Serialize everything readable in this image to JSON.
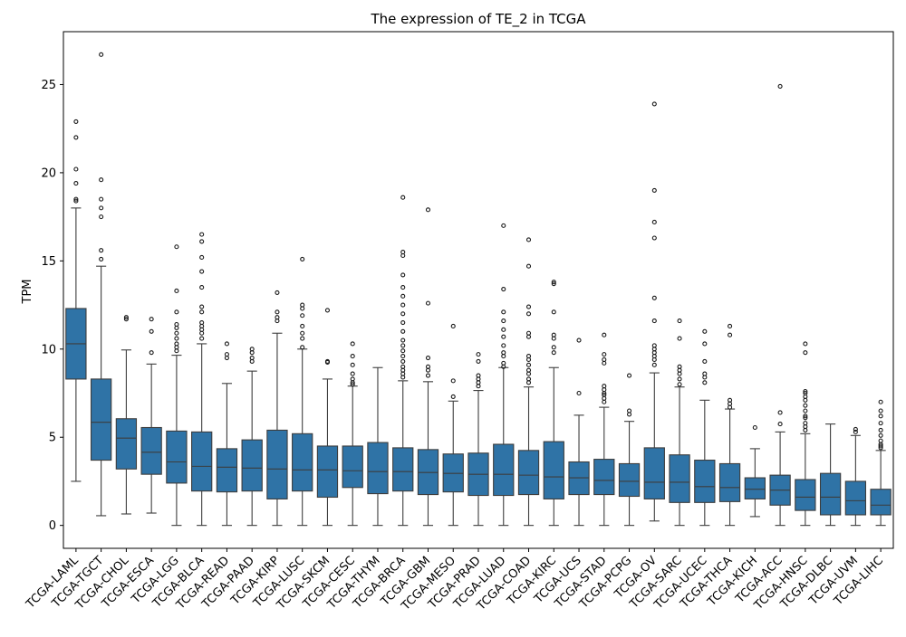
{
  "chart_data": {
    "type": "box",
    "title": "The expression of TE_2 in TCGA",
    "xlabel": "",
    "ylabel": "TPM",
    "ylim": [
      -1.3,
      28.0
    ],
    "yticks": [
      0,
      5,
      10,
      15,
      20,
      25
    ],
    "grid": false,
    "legend": "none",
    "box_color": "#2f73a6",
    "categories": [
      "TCGA-LAML",
      "TCGA-TGCT",
      "TCGA-CHOL",
      "TCGA-ESCA",
      "TCGA-LGG",
      "TCGA-BLCA",
      "TCGA-READ",
      "TCGA-PAAD",
      "TCGA-KIRP",
      "TCGA-LUSC",
      "TCGA-SKCM",
      "TCGA-CESC",
      "TCGA-THYM",
      "TCGA-BRCA",
      "TCGA-GBM",
      "TCGA-MESO",
      "TCGA-PRAD",
      "TCGA-LUAD",
      "TCGA-COAD",
      "TCGA-KIRC",
      "TCGA-UCS",
      "TCGA-STAD",
      "TCGA-PCPG",
      "TCGA-OV",
      "TCGA-SARC",
      "TCGA-UCEC",
      "TCGA-THCA",
      "TCGA-KICH",
      "TCGA-ACC",
      "TCGA-HNSC",
      "TCGA-DLBC",
      "TCGA-UVM",
      "TCGA-LIHC"
    ],
    "boxes": [
      {
        "whislo": 2.5,
        "q1": 8.3,
        "med": 10.3,
        "q3": 12.3,
        "whishi": 18.0,
        "fliers": [
          18.4,
          18.5,
          19.4,
          20.2,
          22.0,
          22.9
        ]
      },
      {
        "whislo": 0.55,
        "q1": 3.7,
        "med": 5.85,
        "q3": 8.3,
        "whishi": 14.7,
        "fliers": [
          15.1,
          15.6,
          17.5,
          18.0,
          18.5,
          19.6,
          26.7
        ]
      },
      {
        "whislo": 0.65,
        "q1": 3.2,
        "med": 4.95,
        "q3": 6.05,
        "whishi": 9.95,
        "fliers": [
          11.7,
          11.8
        ]
      },
      {
        "whislo": 0.7,
        "q1": 2.9,
        "med": 4.15,
        "q3": 5.55,
        "whishi": 9.15,
        "fliers": [
          9.8,
          11.0,
          11.7
        ]
      },
      {
        "whislo": 0.0,
        "q1": 2.4,
        "med": 3.6,
        "q3": 5.35,
        "whishi": 9.65,
        "fliers": [
          9.9,
          10.1,
          10.3,
          10.6,
          10.9,
          11.2,
          11.4,
          12.1,
          13.3,
          15.8
        ]
      },
      {
        "whislo": 0.0,
        "q1": 1.95,
        "med": 3.35,
        "q3": 5.3,
        "whishi": 10.3,
        "fliers": [
          10.6,
          10.9,
          11.1,
          11.3,
          11.5,
          12.1,
          12.4,
          13.5,
          14.4,
          15.2,
          16.1,
          16.5
        ]
      },
      {
        "whislo": 0.0,
        "q1": 1.9,
        "med": 3.3,
        "q3": 4.35,
        "whishi": 8.05,
        "fliers": [
          9.5,
          9.7,
          10.3
        ]
      },
      {
        "whislo": 0.0,
        "q1": 1.95,
        "med": 3.25,
        "q3": 4.85,
        "whishi": 8.75,
        "fliers": [
          9.3,
          9.5,
          9.8,
          10.0
        ]
      },
      {
        "whislo": 0.0,
        "q1": 1.5,
        "med": 3.2,
        "q3": 5.4,
        "whishi": 10.9,
        "fliers": [
          11.6,
          11.8,
          12.1,
          13.2
        ]
      },
      {
        "whislo": 0.0,
        "q1": 1.95,
        "med": 3.15,
        "q3": 5.2,
        "whishi": 10.0,
        "fliers": [
          10.1,
          10.6,
          10.9,
          11.3,
          11.9,
          12.3,
          12.5,
          15.1
        ]
      },
      {
        "whislo": 0.0,
        "q1": 1.6,
        "med": 3.15,
        "q3": 4.5,
        "whishi": 8.3,
        "fliers": [
          9.25,
          9.3,
          12.2
        ]
      },
      {
        "whislo": 0.0,
        "q1": 2.15,
        "med": 3.1,
        "q3": 4.5,
        "whishi": 7.9,
        "fliers": [
          8.0,
          8.1,
          8.3,
          8.6,
          9.1,
          9.6,
          10.3
        ]
      },
      {
        "whislo": 0.0,
        "q1": 1.8,
        "med": 3.05,
        "q3": 4.7,
        "whishi": 8.95,
        "fliers": []
      },
      {
        "whislo": 0.0,
        "q1": 1.95,
        "med": 3.05,
        "q3": 4.4,
        "whishi": 8.2,
        "fliers": [
          8.4,
          8.6,
          8.8,
          9.0,
          9.3,
          9.6,
          9.9,
          10.2,
          10.5,
          11.0,
          11.5,
          12.0,
          12.5,
          13.0,
          13.5,
          14.2,
          15.3,
          15.5,
          18.6
        ]
      },
      {
        "whislo": 0.0,
        "q1": 1.75,
        "med": 3.0,
        "q3": 4.3,
        "whishi": 8.15,
        "fliers": [
          8.5,
          8.8,
          9.0,
          9.5,
          12.6,
          17.9
        ]
      },
      {
        "whislo": 0.0,
        "q1": 1.9,
        "med": 2.95,
        "q3": 4.05,
        "whishi": 7.05,
        "fliers": [
          7.3,
          8.2,
          11.3
        ]
      },
      {
        "whislo": 0.0,
        "q1": 1.7,
        "med": 2.9,
        "q3": 4.1,
        "whishi": 7.65,
        "fliers": [
          7.9,
          8.1,
          8.3,
          8.5,
          9.3,
          9.7
        ]
      },
      {
        "whislo": 0.0,
        "q1": 1.7,
        "med": 2.9,
        "q3": 4.6,
        "whishi": 8.95,
        "fliers": [
          9.0,
          9.2,
          9.6,
          9.8,
          10.2,
          10.7,
          11.1,
          11.6,
          12.1,
          13.4,
          17.0
        ]
      },
      {
        "whislo": 0.0,
        "q1": 1.75,
        "med": 2.85,
        "q3": 4.25,
        "whishi": 7.85,
        "fliers": [
          8.1,
          8.3,
          8.6,
          8.8,
          9.1,
          9.4,
          9.6,
          10.7,
          10.9,
          12.0,
          12.4,
          14.7,
          16.2
        ]
      },
      {
        "whislo": 0.0,
        "q1": 1.5,
        "med": 2.75,
        "q3": 4.75,
        "whishi": 8.95,
        "fliers": [
          9.8,
          10.1,
          10.6,
          10.8,
          12.1,
          13.7,
          13.8
        ]
      },
      {
        "whislo": 0.0,
        "q1": 1.75,
        "med": 2.7,
        "q3": 3.6,
        "whishi": 6.25,
        "fliers": [
          7.5,
          10.5
        ]
      },
      {
        "whislo": 0.0,
        "q1": 1.75,
        "med": 2.55,
        "q3": 3.75,
        "whishi": 6.7,
        "fliers": [
          7.0,
          7.2,
          7.4,
          7.5,
          7.7,
          7.9,
          9.2,
          9.4,
          9.7,
          10.8
        ]
      },
      {
        "whislo": 0.0,
        "q1": 1.65,
        "med": 2.5,
        "q3": 3.5,
        "whishi": 5.9,
        "fliers": [
          6.3,
          6.5,
          8.5
        ]
      },
      {
        "whislo": 0.25,
        "q1": 1.5,
        "med": 2.45,
        "q3": 4.4,
        "whishi": 8.65,
        "fliers": [
          9.1,
          9.4,
          9.6,
          9.8,
          10.0,
          10.2,
          11.6,
          12.9,
          16.3,
          17.2,
          19.0,
          23.9
        ]
      },
      {
        "whislo": 0.0,
        "q1": 1.3,
        "med": 2.45,
        "q3": 4.0,
        "whishi": 7.85,
        "fliers": [
          8.0,
          8.3,
          8.6,
          8.8,
          9.0,
          10.6,
          11.6
        ]
      },
      {
        "whislo": 0.0,
        "q1": 1.3,
        "med": 2.2,
        "q3": 3.7,
        "whishi": 7.1,
        "fliers": [
          8.1,
          8.4,
          8.6,
          9.3,
          10.3,
          11.0
        ]
      },
      {
        "whislo": 0.0,
        "q1": 1.35,
        "med": 2.15,
        "q3": 3.5,
        "whishi": 6.6,
        "fliers": [
          6.7,
          6.9,
          7.1,
          10.8,
          11.3
        ]
      },
      {
        "whislo": 0.5,
        "q1": 1.5,
        "med": 2.05,
        "q3": 2.7,
        "whishi": 4.35,
        "fliers": [
          5.55
        ]
      },
      {
        "whislo": 0.0,
        "q1": 1.15,
        "med": 2.0,
        "q3": 2.85,
        "whishi": 5.3,
        "fliers": [
          5.75,
          6.4,
          24.9
        ]
      },
      {
        "whislo": 0.0,
        "q1": 0.85,
        "med": 1.6,
        "q3": 2.6,
        "whishi": 5.2,
        "fliers": [
          5.4,
          5.6,
          5.8,
          6.1,
          6.2,
          6.5,
          6.8,
          7.1,
          7.3,
          7.5,
          7.6,
          9.8,
          10.3
        ]
      },
      {
        "whislo": 0.0,
        "q1": 0.6,
        "med": 1.6,
        "q3": 2.95,
        "whishi": 5.75,
        "fliers": []
      },
      {
        "whislo": 0.0,
        "q1": 0.6,
        "med": 1.4,
        "q3": 2.5,
        "whishi": 5.1,
        "fliers": [
          5.3,
          5.45
        ]
      },
      {
        "whislo": 0.0,
        "q1": 0.6,
        "med": 1.15,
        "q3": 2.05,
        "whishi": 4.25,
        "fliers": [
          4.4,
          4.5,
          4.6,
          4.8,
          5.1,
          5.4,
          5.8,
          6.2,
          6.5,
          7.0
        ]
      }
    ]
  }
}
